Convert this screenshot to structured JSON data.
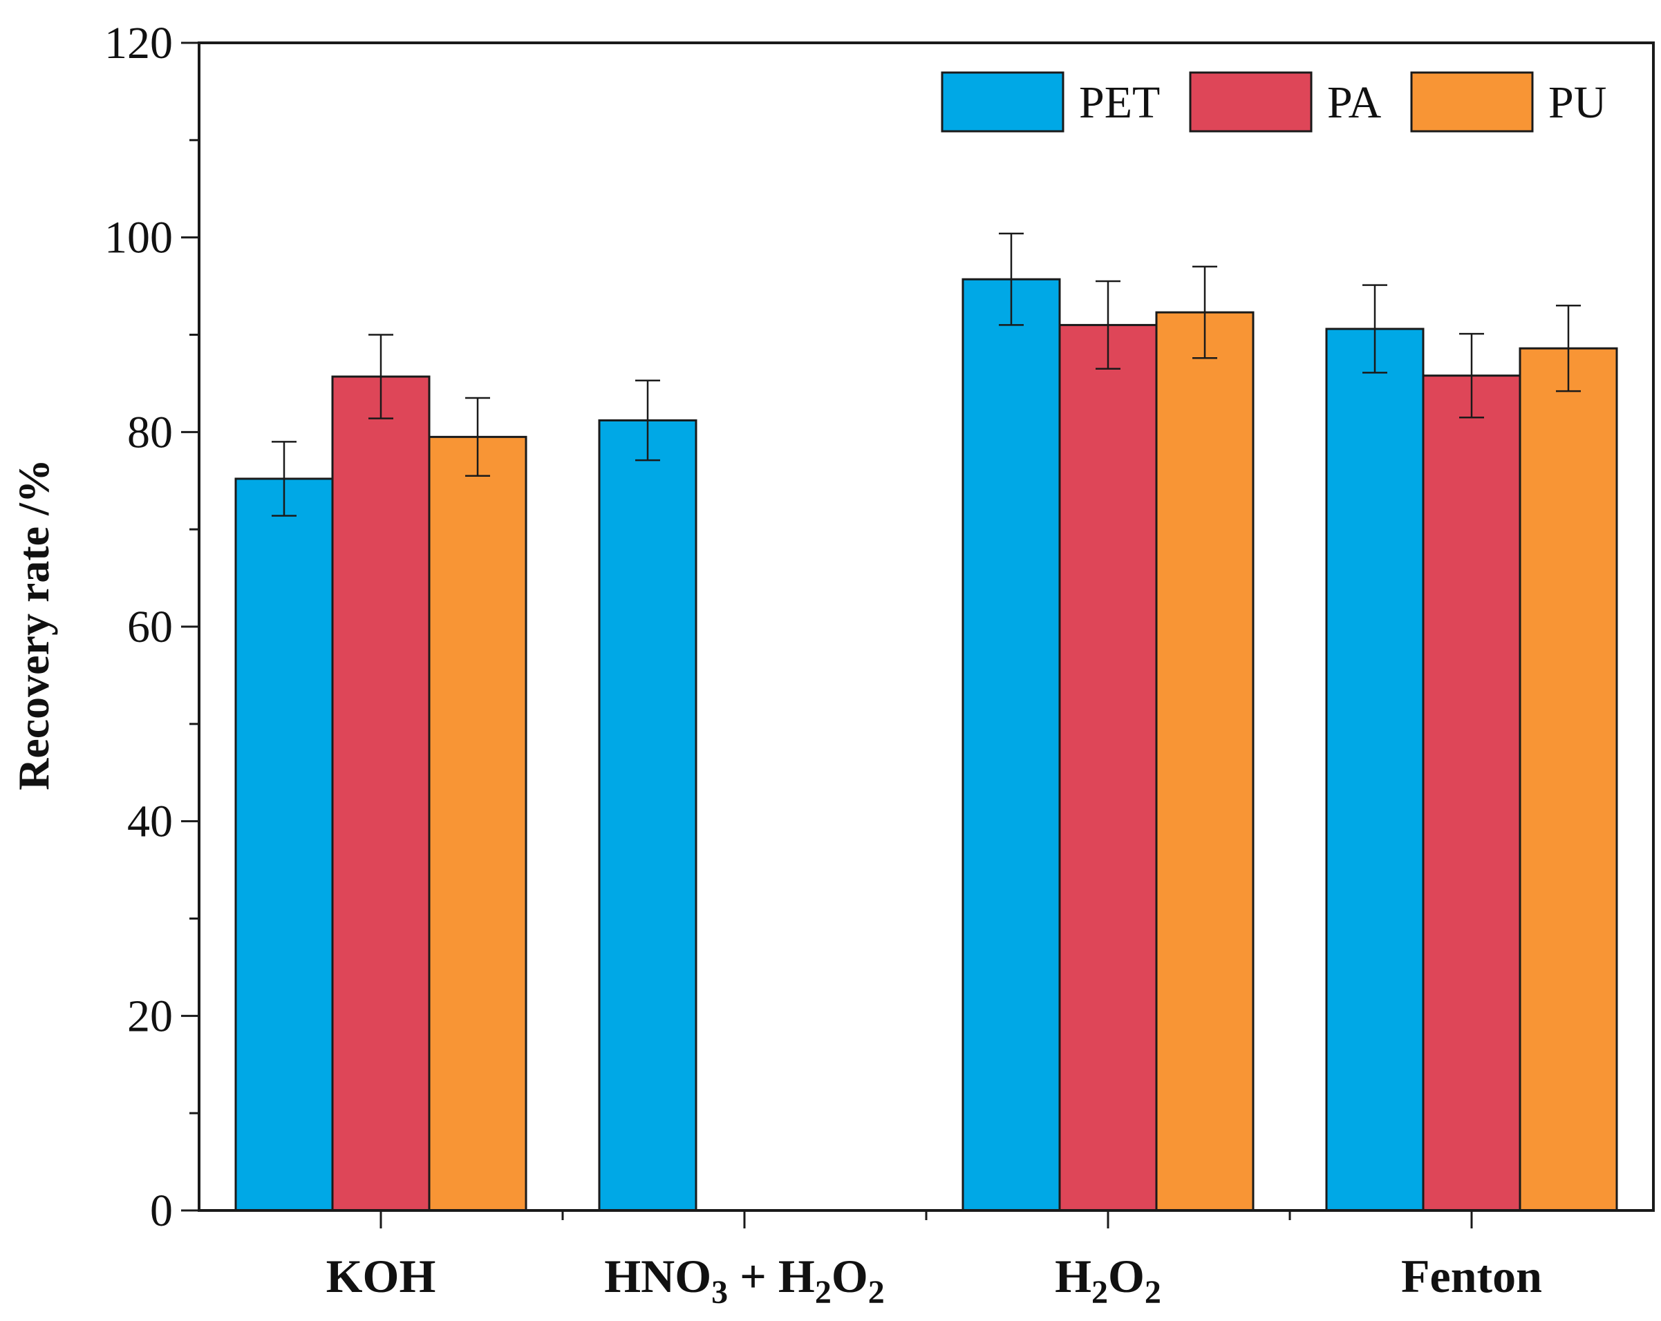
{
  "chart_data": {
    "type": "bar",
    "title": "",
    "xlabel": "",
    "ylabel": "Recovery rate /%",
    "ylim": [
      0,
      120
    ],
    "yticks": [
      0,
      20,
      40,
      60,
      80,
      100,
      120
    ],
    "yticks_labels": [
      "0",
      "20",
      "40",
      "60",
      "80",
      "100",
      "120"
    ],
    "categories": [
      {
        "main": "KOH"
      },
      {
        "main": "HNO",
        "sub1": "3",
        "mid": " + H",
        "sub2": "2",
        "tail": "O",
        "sub3": "2"
      },
      {
        "main": "H",
        "sub1": "2",
        "mid": "O",
        "sub2": "2"
      },
      {
        "main": "Fenton"
      }
    ],
    "series": [
      {
        "name": "PET",
        "color": "#00A8E6",
        "values": [
          75.2,
          81.2,
          95.7,
          90.6
        ],
        "errors": [
          3.8,
          4.1,
          4.7,
          4.5
        ]
      },
      {
        "name": "PA",
        "color": "#DE4658",
        "values": [
          85.7,
          null,
          91.0,
          85.8
        ],
        "errors": [
          4.3,
          null,
          4.5,
          4.3
        ]
      },
      {
        "name": "PU",
        "color": "#F89535",
        "values": [
          79.5,
          null,
          92.3,
          88.6
        ],
        "errors": [
          4.0,
          null,
          4.7,
          4.4
        ]
      }
    ],
    "legend": {
      "position": "top-right"
    }
  }
}
